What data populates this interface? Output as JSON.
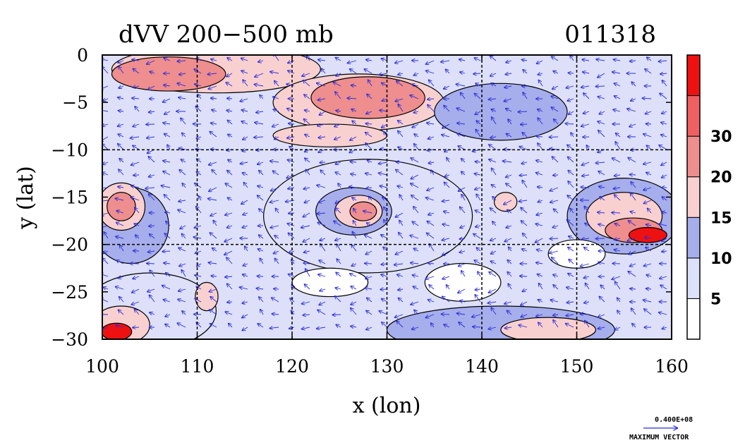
{
  "chart_data": {
    "type": "heatmap",
    "title": "dVV 200−500 mb",
    "date_label": "011318",
    "xlabel": "x (lon)",
    "ylabel": "y (lat)",
    "xlim": [
      100,
      160
    ],
    "ylim": [
      -30,
      0
    ],
    "x_ticks": [
      100,
      110,
      120,
      130,
      140,
      150,
      160
    ],
    "y_ticks": [
      0,
      -5,
      -10,
      -15,
      -20,
      -25,
      -30
    ],
    "x_tick_labels": [
      "100",
      "110",
      "120",
      "130",
      "140",
      "150",
      "160"
    ],
    "y_tick_labels": [
      "0",
      "−5",
      "−10",
      "−15",
      "−20",
      "−25",
      "−30"
    ],
    "grid": true,
    "grid_lines_x": [
      110,
      120,
      130,
      140,
      150
    ],
    "grid_lines_y": [
      -10,
      -20
    ],
    "colorbar": {
      "levels": [
        0,
        5,
        10,
        15,
        20,
        30,
        35
      ],
      "tick_labels": [
        "5",
        "10",
        "15",
        "20",
        "30"
      ],
      "tick_values": [
        5,
        10,
        15,
        20,
        30
      ],
      "colors": [
        "#ffffff",
        "#dde0f8",
        "#a6aeec",
        "#f8d0d0",
        "#ef8e8e",
        "#f06060",
        "#ee1111"
      ]
    },
    "regions": [
      {
        "level": 2,
        "cx": 103,
        "cy": -18,
        "rx": 4,
        "ry": 4
      },
      {
        "level": 3,
        "cx": 102,
        "cy": -16,
        "rx": 2.5,
        "ry": 2.5
      },
      {
        "level": 4,
        "cx": 102,
        "cy": -16,
        "rx": 1.5,
        "ry": 1.5
      },
      {
        "level": 3,
        "cx": 112,
        "cy": -1.5,
        "rx": 11,
        "ry": 2.5
      },
      {
        "level": 4,
        "cx": 107,
        "cy": -2,
        "rx": 6,
        "ry": 1.8
      },
      {
        "level": 3,
        "cx": 127,
        "cy": -5,
        "rx": 9,
        "ry": 3
      },
      {
        "level": 4,
        "cx": 128,
        "cy": -4.5,
        "rx": 6,
        "ry": 2.2
      },
      {
        "level": 3,
        "cx": 124,
        "cy": -8.5,
        "rx": 6,
        "ry": 1.2
      },
      {
        "level": 1,
        "cx": 128,
        "cy": -17,
        "rx": 11,
        "ry": 6
      },
      {
        "level": 2,
        "cx": 126.5,
        "cy": -16.5,
        "rx": 4,
        "ry": 2.5
      },
      {
        "level": 3,
        "cx": 127,
        "cy": -16.5,
        "rx": 2.5,
        "ry": 1.7
      },
      {
        "level": 4,
        "cx": 127.5,
        "cy": -16.5,
        "rx": 1.4,
        "ry": 1
      },
      {
        "level": 2,
        "cx": 142,
        "cy": -6,
        "rx": 7,
        "ry": 3
      },
      {
        "level": 3,
        "cx": 142.5,
        "cy": -15.5,
        "rx": 1.2,
        "ry": 1
      },
      {
        "level": 2,
        "cx": 155,
        "cy": -17,
        "rx": 6,
        "ry": 4
      },
      {
        "level": 3,
        "cx": 155,
        "cy": -17,
        "rx": 4,
        "ry": 2.5
      },
      {
        "level": 4,
        "cx": 156,
        "cy": -18.5,
        "rx": 3,
        "ry": 1.3
      },
      {
        "level": 6,
        "cx": 157.5,
        "cy": -19,
        "rx": 2,
        "ry": 0.8
      },
      {
        "level": 1,
        "cx": 105,
        "cy": -27,
        "rx": 7,
        "ry": 4
      },
      {
        "level": 3,
        "cx": 102,
        "cy": -28.5,
        "rx": 3,
        "ry": 2
      },
      {
        "level": 6,
        "cx": 101.5,
        "cy": -29.2,
        "rx": 1.6,
        "ry": 0.9
      },
      {
        "level": 3,
        "cx": 111,
        "cy": -25.5,
        "rx": 1.2,
        "ry": 1.5
      },
      {
        "level": 2,
        "cx": 142,
        "cy": -29,
        "rx": 12,
        "ry": 2.5
      },
      {
        "level": 3,
        "cx": 147,
        "cy": -29,
        "rx": 5,
        "ry": 1.3
      },
      {
        "level": 0,
        "cx": 124,
        "cy": -24,
        "rx": 4,
        "ry": 1.5
      },
      {
        "level": 0,
        "cx": 138,
        "cy": -24,
        "rx": 4,
        "ry": 2
      },
      {
        "level": 0,
        "cx": 150,
        "cy": -21,
        "rx": 3,
        "ry": 1.5
      }
    ],
    "vector_key": {
      "value_label": "0.400E+08",
      "label": "MAXIMUM VECTOR"
    }
  }
}
